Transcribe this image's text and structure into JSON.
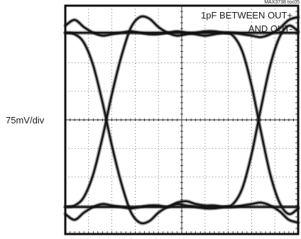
{
  "chart_data": {
    "type": "line",
    "title": "",
    "figure_id": "MAX3738 toc05",
    "annotation_line1": "1pF BETWEEN OUT+",
    "annotation_line2": "AND OUT-",
    "ylabel": "75mV/div",
    "xlabel": "",
    "grid": true,
    "grid_divisions": {
      "x": 10,
      "y": 8
    },
    "plot_style": "oscilloscope eye diagram",
    "trace_color": "#111111",
    "levels": {
      "high": 3.05,
      "low": -3.05
    },
    "xlim": [
      -5,
      5
    ],
    "ylim": [
      -4,
      4
    ],
    "series": [
      {
        "x": [
          -5.0,
          -4.6,
          -4.2,
          -3.8,
          -3.4,
          -3.0,
          -2.6,
          -2.2,
          -1.8,
          -1.4,
          -1.0,
          -0.6,
          -0.2,
          0.2,
          0.6,
          1.0,
          1.4,
          1.8,
          2.2,
          2.6,
          3.0,
          3.4,
          3.8,
          4.2,
          4.6,
          5.0
        ],
        "y": [
          3.05,
          3.05,
          3.05,
          3.05,
          3.05,
          3.05,
          3.05,
          3.05,
          3.05,
          3.05,
          3.05,
          3.05,
          3.05,
          3.05,
          3.05,
          3.05,
          3.05,
          3.05,
          3.05,
          3.05,
          3.05,
          3.05,
          3.05,
          3.05,
          3.05,
          3.05
        ]
      },
      {
        "x": [
          -5.0,
          -4.6,
          -4.2,
          -3.8,
          -3.4,
          -3.0,
          -2.6,
          -2.2,
          -1.8,
          -1.4,
          -1.0,
          -0.6,
          -0.2,
          0.2,
          0.6,
          1.0,
          1.4,
          1.8,
          2.2,
          2.6,
          3.0,
          3.4,
          3.8,
          4.2,
          4.6,
          5.0
        ],
        "y": [
          -3.05,
          -3.05,
          -3.05,
          -3.05,
          -3.05,
          -3.05,
          -3.05,
          -3.05,
          -3.05,
          -3.05,
          -3.05,
          -3.05,
          -3.05,
          -3.05,
          -3.05,
          -3.05,
          -3.05,
          -3.05,
          -3.05,
          -3.05,
          -3.05,
          -3.05,
          -3.05,
          -3.05,
          -3.05,
          -3.05
        ]
      },
      {
        "x": [
          -5.0,
          -4.6,
          -4.2,
          -3.8,
          -3.4,
          -3.0,
          -2.6,
          -2.2,
          -1.8,
          -1.4,
          -1.0,
          -0.6,
          -0.2,
          0.2,
          0.6,
          1.0,
          1.4,
          1.8,
          2.2,
          2.6,
          3.0,
          3.4,
          3.8,
          4.2,
          4.6,
          5.0
        ],
        "y": [
          -3.05,
          -3.0,
          -2.7,
          -1.9,
          -0.6,
          0.9,
          2.2,
          3.2,
          3.6,
          3.55,
          3.25,
          3.05,
          2.95,
          3.0,
          3.05,
          3.1,
          3.1,
          3.05,
          2.95,
          2.4,
          1.2,
          -0.4,
          -1.9,
          -2.9,
          -3.3,
          -3.1
        ]
      },
      {
        "x": [
          -5.0,
          -4.6,
          -4.2,
          -3.8,
          -3.4,
          -3.0,
          -2.6,
          -2.2,
          -1.8,
          -1.4,
          -1.0,
          -0.6,
          -0.2,
          0.2,
          0.6,
          1.0,
          1.4,
          1.8,
          2.2,
          2.6,
          3.0,
          3.4,
          3.8,
          4.2,
          4.6,
          5.0
        ],
        "y": [
          3.05,
          3.0,
          2.7,
          1.9,
          0.6,
          -0.9,
          -2.2,
          -3.2,
          -3.6,
          -3.55,
          -3.25,
          -3.05,
          -2.95,
          -3.0,
          -3.05,
          -3.1,
          -3.1,
          -3.05,
          -2.95,
          -2.4,
          -1.2,
          0.4,
          1.9,
          2.9,
          3.3,
          3.1
        ]
      },
      {
        "x": [
          -5.0,
          -4.6,
          -4.2,
          -3.8,
          -3.4,
          -3.0,
          -2.6,
          -2.2,
          -1.8,
          -1.4,
          -1.0,
          -0.6,
          -0.2,
          0.2,
          0.6,
          1.0,
          1.4,
          1.8,
          2.2,
          2.6,
          3.0,
          3.4,
          3.8,
          4.2,
          4.6,
          5.0
        ],
        "y": [
          3.3,
          3.5,
          3.25,
          3.05,
          2.95,
          3.0,
          3.05,
          3.1,
          3.05,
          3.0,
          3.0,
          3.05,
          3.1,
          3.05,
          3.0,
          2.95,
          3.0,
          3.05,
          3.05,
          3.0,
          2.95,
          2.9,
          3.0,
          3.2,
          3.5,
          3.6
        ]
      },
      {
        "x": [
          -5.0,
          -4.6,
          -4.2,
          -3.8,
          -3.4,
          -3.0,
          -2.6,
          -2.2,
          -1.8,
          -1.4,
          -1.0,
          -0.6,
          -0.2,
          0.2,
          0.6,
          1.0,
          1.4,
          1.8,
          2.2,
          2.6,
          3.0,
          3.4,
          3.8,
          4.2,
          4.6,
          5.0
        ],
        "y": [
          -3.3,
          -3.5,
          -3.25,
          -3.05,
          -2.95,
          -3.0,
          -3.05,
          -3.1,
          -3.05,
          -3.0,
          -3.0,
          -3.05,
          -2.9,
          -2.85,
          -2.95,
          -3.0,
          -3.0,
          -3.05,
          -3.05,
          -3.0,
          -2.95,
          -2.9,
          -3.0,
          -3.2,
          -3.5,
          -3.6
        ]
      }
    ]
  }
}
